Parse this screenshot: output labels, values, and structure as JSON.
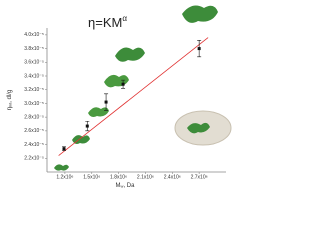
{
  "chart_data": {
    "type": "scatter",
    "annotation": "η=KM",
    "annotation_sup": "α",
    "x_label": "M",
    "x_label_sub": "w",
    "x_label_rest": ", Da",
    "y_label": "η",
    "y_label_sub": "int",
    "y_label_rest": ", dl/g",
    "x": [
      1190000,
      1450000,
      1660000,
      1850000,
      2700000
    ],
    "series": [
      {
        "color": "#111111",
        "values": [
          2.34e-05,
          2.67e-05,
          3.02e-05,
          3.28e-05,
          3.8e-05
        ],
        "errors": [
          3e-07,
          7e-07,
          1.2e-06,
          6e-07,
          1.2e-06
        ]
      }
    ],
    "fit_line": {
      "color": "#e03030",
      "x": [
        1130000,
        2800000
      ],
      "y": [
        2.24e-05,
        3.96e-05
      ]
    },
    "xlim": [
      1000000,
      3000000
    ],
    "ylim": [
      2e-05,
      4.1e-05
    ],
    "xticks": [
      {
        "value": 1200000,
        "label": "1.2x10⁶"
      },
      {
        "value": 1500000,
        "label": "1.5x10⁶"
      },
      {
        "value": 1800000,
        "label": "1.8x10⁶"
      },
      {
        "value": 2100000,
        "label": "2.1x10⁶"
      },
      {
        "value": 2400000,
        "label": "2.4x10⁶"
      },
      {
        "value": 2700000,
        "label": "2.7x10⁶"
      }
    ],
    "yticks": [
      {
        "value": 2.2e-05,
        "label": "2.2x10⁻⁵"
      },
      {
        "value": 2.4e-05,
        "label": "2.4x10⁻⁵"
      },
      {
        "value": 2.6e-05,
        "label": "2.6x10⁻⁵"
      },
      {
        "value": 2.8e-05,
        "label": "2.8x10⁻⁵"
      },
      {
        "value": 3e-05,
        "label": "3.0x10⁻⁵"
      },
      {
        "value": 3.2e-05,
        "label": "3.2x10⁻⁵"
      },
      {
        "value": 3.4e-05,
        "label": "3.4x10⁻⁵"
      },
      {
        "value": 3.6e-05,
        "label": "3.6x10⁻⁵"
      },
      {
        "value": 3.8e-05,
        "label": "3.8x10⁻⁵"
      },
      {
        "value": 4e-05,
        "label": "4.0x10⁻⁵"
      }
    ]
  }
}
